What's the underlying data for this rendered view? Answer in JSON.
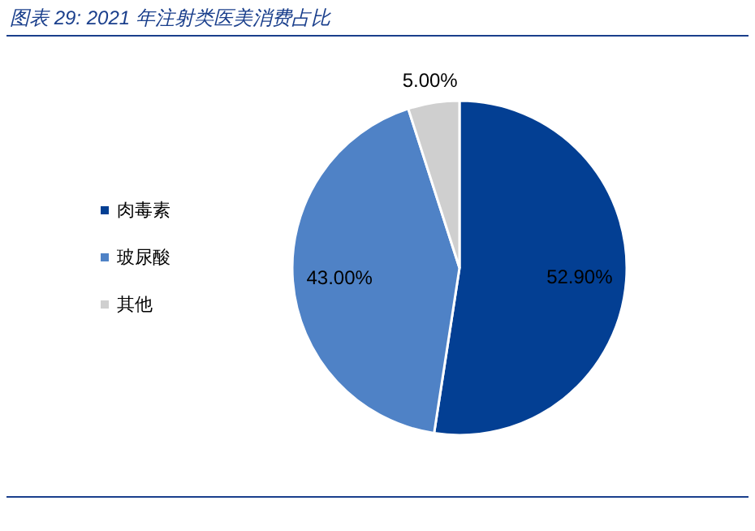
{
  "chart_data": {
    "type": "pie",
    "title": "图表 29:  2021 年注射类医美消费占比",
    "categories": [
      "肉毒素",
      "玻尿酸",
      "其他"
    ],
    "values": [
      52.9,
      43.0,
      5.0
    ],
    "value_labels": [
      "52.90%",
      "43.00%",
      "5.00%"
    ],
    "colors": [
      "#033f93",
      "#4f82c6",
      "#cfcfcf"
    ],
    "legend": "left"
  }
}
